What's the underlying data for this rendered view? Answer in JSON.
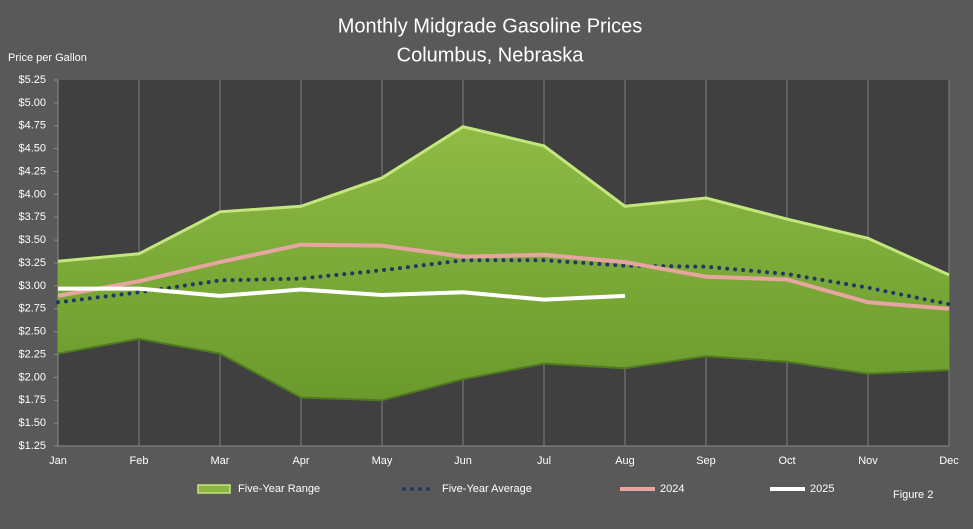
{
  "chart_data": {
    "type": "line",
    "title": "Monthly Midgrade Gasoline Prices",
    "subtitle": "Columbus, Nebraska",
    "y_label": "Price per Gallon",
    "annotation": "Figure 2",
    "categories": [
      "Jan",
      "Feb",
      "Mar",
      "Apr",
      "May",
      "Jun",
      "Jul",
      "Aug",
      "Sep",
      "Oct",
      "Nov",
      "Dec"
    ],
    "series": [
      {
        "name": "Five-Year Range",
        "style": "range",
        "color": "#8cb440",
        "high": [
          3.27,
          3.35,
          3.81,
          3.87,
          4.18,
          4.74,
          4.53,
          3.87,
          3.96,
          3.73,
          3.52,
          3.12
        ],
        "low": [
          2.26,
          2.42,
          2.26,
          1.78,
          1.75,
          1.98,
          2.15,
          2.1,
          2.23,
          2.17,
          2.04,
          2.08
        ]
      },
      {
        "name": "Five-Year Average",
        "style": "dotted",
        "color": "#1f3864",
        "values": [
          2.82,
          2.93,
          3.06,
          3.08,
          3.17,
          3.28,
          3.28,
          3.22,
          3.21,
          3.13,
          2.98,
          2.8
        ]
      },
      {
        "name": "2024",
        "style": "line",
        "color": "#e6a5a0",
        "values": [
          2.89,
          3.05,
          3.26,
          3.45,
          3.44,
          3.32,
          3.34,
          3.26,
          3.1,
          3.07,
          2.82,
          2.75
        ]
      },
      {
        "name": "2025",
        "style": "line",
        "color": "#ffffff",
        "values": [
          2.97,
          2.97,
          2.89,
          2.96,
          2.9,
          2.93,
          2.85,
          2.89,
          null,
          null,
          null,
          null
        ]
      }
    ],
    "ylim": [
      1.25,
      5.25
    ],
    "yticks": [
      {
        "value": 1.25,
        "label": "$1.25"
      },
      {
        "value": 1.5,
        "label": "$1.50"
      },
      {
        "value": 1.75,
        "label": "$1.75"
      },
      {
        "value": 2,
        "label": "$2.00"
      },
      {
        "value": 2.25,
        "label": "$2.25"
      },
      {
        "value": 2.5,
        "label": "$2.50"
      },
      {
        "value": 2.75,
        "label": "$2.75"
      },
      {
        "value": 3,
        "label": "$3.00"
      },
      {
        "value": 3.25,
        "label": "$3.25"
      },
      {
        "value": 3.5,
        "label": "$3.50"
      },
      {
        "value": 3.75,
        "label": "$3.75"
      },
      {
        "value": 4,
        "label": "$4.00"
      },
      {
        "value": 4.25,
        "label": "$4.25"
      },
      {
        "value": 4.5,
        "label": "$4.50"
      },
      {
        "value": 4.75,
        "label": "$4.75"
      },
      {
        "value": 5,
        "label": "$5.00"
      },
      {
        "value": 5.25,
        "label": "$5.25"
      }
    ],
    "grid": "x",
    "legend": "bottom"
  }
}
